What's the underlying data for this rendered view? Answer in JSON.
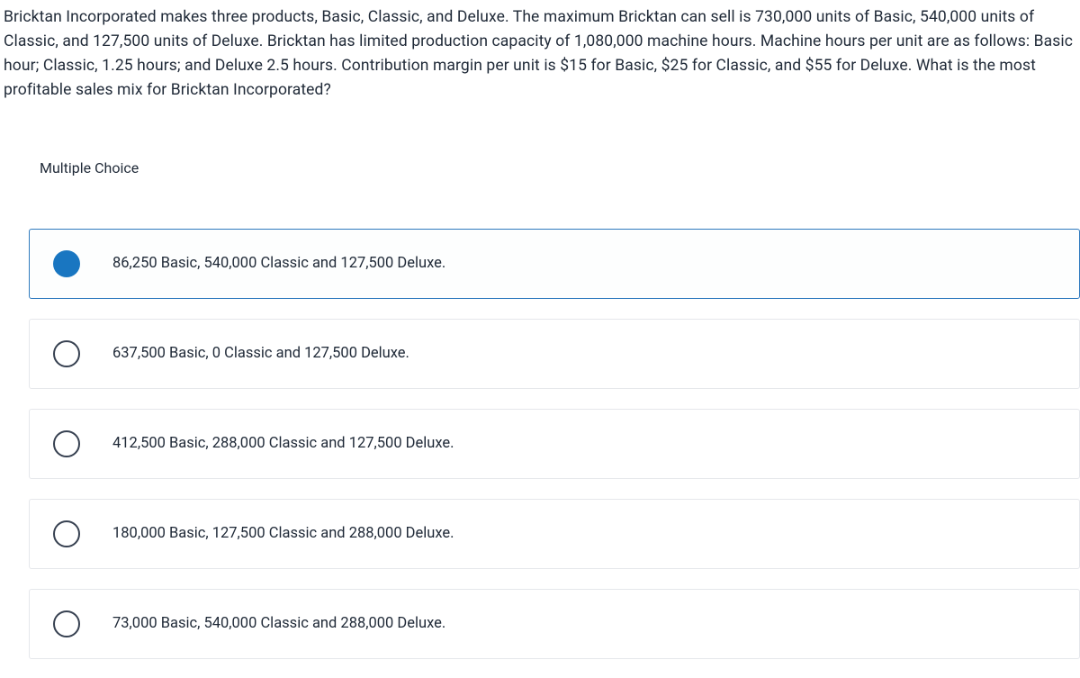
{
  "question_text": "Bricktan Incorporated makes three products, Basic, Classic, and Deluxe. The maximum Bricktan can sell is 730,000 units of Basic, 540,000 units of Classic, and 127,500 units of Deluxe. Bricktan has limited production capacity of 1,080,000 machine hours. Machine hours per unit are as follows: Basic hour; Classic, 1.25 hours; and Deluxe 2.5 hours. Contribution margin per unit is $15 for Basic, $25 for Classic, and $55 for Deluxe. What is the most profitable sales mix for Bricktan Incorporated?",
  "mc_label": "Multiple Choice",
  "options": [
    {
      "label": "86,250 Basic, 540,000 Classic and 127,500 Deluxe.",
      "selected": true
    },
    {
      "label": "637,500 Basic, 0 Classic and 127,500 Deluxe.",
      "selected": false
    },
    {
      "label": "412,500 Basic, 288,000 Classic and 127,500 Deluxe.",
      "selected": false
    },
    {
      "label": "180,000 Basic, 127,500 Classic and 288,000 Deluxe.",
      "selected": false
    },
    {
      "label": "73,000 Basic, 540,000 Classic and 288,000 Deluxe.",
      "selected": false
    }
  ],
  "colors": {
    "selected_border": "#2f7abf",
    "selected_fill": "#1976c1",
    "option_border": "#e5e7eb",
    "radio_border": "#374151",
    "text": "#1f2937",
    "background": "#ffffff"
  }
}
